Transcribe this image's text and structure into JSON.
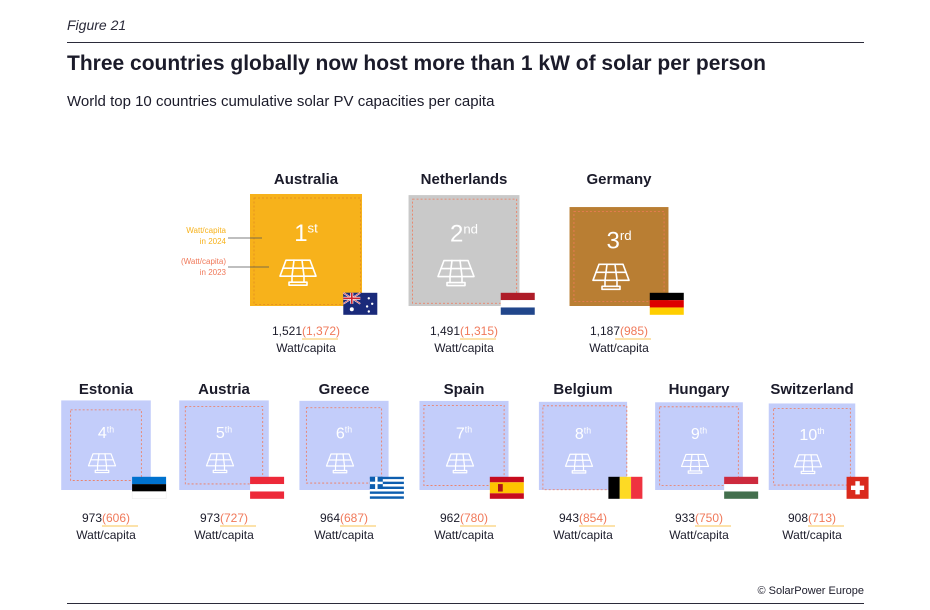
{
  "figure_label": "Figure 21",
  "source": "© SolarPower Europe",
  "chart_data": {
    "type": "pictogram",
    "title": "Three countries globally now host more than 1 kW of solar per person",
    "subtitle": "World top 10 countries cumulative solar PV capacities per capita",
    "unit": "Watt/capita",
    "legend": {
      "current": "Watt/capita in 2024",
      "current_lines": [
        "Watt/capita",
        "in 2024"
      ],
      "previous": "(Watt/capita) in 2023",
      "previous_lines": [
        "(Watt/capita)",
        "in 2023"
      ]
    },
    "series": [
      {
        "name": "2024",
        "values": [
          1521,
          1491,
          1187,
          973,
          973,
          964,
          962,
          943,
          933,
          908
        ]
      },
      {
        "name": "2023",
        "values": [
          1372,
          1315,
          985,
          606,
          727,
          687,
          780,
          854,
          750,
          713
        ]
      }
    ],
    "countries": [
      {
        "rank": 1,
        "rank_num": "1",
        "rank_suffix": "st",
        "name": "Australia",
        "value_2024": 1521,
        "value_2023": 1372,
        "value_2024_label": "1,521",
        "value_2023_label": "(1,372)",
        "flag": "australia-flag",
        "color": "#f7b21b"
      },
      {
        "rank": 2,
        "rank_num": "2",
        "rank_suffix": "nd",
        "name": "Netherlands",
        "value_2024": 1491,
        "value_2023": 1315,
        "value_2024_label": "1,491",
        "value_2023_label": "(1,315)",
        "flag": "netherlands-flag",
        "color": "#c9c9c9"
      },
      {
        "rank": 3,
        "rank_num": "3",
        "rank_suffix": "rd",
        "name": "Germany",
        "value_2024": 1187,
        "value_2023": 985,
        "value_2024_label": "1,187",
        "value_2023_label": "(985)",
        "flag": "germany-flag",
        "color": "#b97e33"
      },
      {
        "rank": 4,
        "rank_num": "4",
        "rank_suffix": "th",
        "name": "Estonia",
        "value_2024": 973,
        "value_2023": 606,
        "value_2024_label": "973",
        "value_2023_label": "(606)",
        "flag": "estonia-flag",
        "color": "#c3cdfa"
      },
      {
        "rank": 5,
        "rank_num": "5",
        "rank_suffix": "th",
        "name": "Austria",
        "value_2024": 973,
        "value_2023": 727,
        "value_2024_label": "973",
        "value_2023_label": "(727)",
        "flag": "austria-flag",
        "color": "#c3cdfa"
      },
      {
        "rank": 6,
        "rank_num": "6",
        "rank_suffix": "th",
        "name": "Greece",
        "value_2024": 964,
        "value_2023": 687,
        "value_2024_label": "964",
        "value_2023_label": "(687)",
        "flag": "greece-flag",
        "color": "#c3cdfa"
      },
      {
        "rank": 7,
        "rank_num": "7",
        "rank_suffix": "th",
        "name": "Spain",
        "value_2024": 962,
        "value_2023": 780,
        "value_2024_label": "962",
        "value_2023_label": "(780)",
        "flag": "spain-flag",
        "color": "#c3cdfa"
      },
      {
        "rank": 8,
        "rank_num": "8",
        "rank_suffix": "th",
        "name": "Belgium",
        "value_2024": 943,
        "value_2023": 854,
        "value_2024_label": "943",
        "value_2023_label": "(854)",
        "flag": "belgium-flag",
        "color": "#c3cdfa"
      },
      {
        "rank": 9,
        "rank_num": "9",
        "rank_suffix": "th",
        "name": "Hungary",
        "value_2024": 933,
        "value_2023": 750,
        "value_2024_label": "933",
        "value_2023_label": "(750)",
        "flag": "hungary-flag",
        "color": "#c3cdfa"
      },
      {
        "rank": 10,
        "rank_num": "10",
        "rank_suffix": "th",
        "name": "Switzerland",
        "value_2024": 908,
        "value_2023": 713,
        "value_2024_label": "908",
        "value_2023_label": "(713)",
        "flag": "switzerland-flag",
        "color": "#c3cdfa"
      }
    ]
  }
}
